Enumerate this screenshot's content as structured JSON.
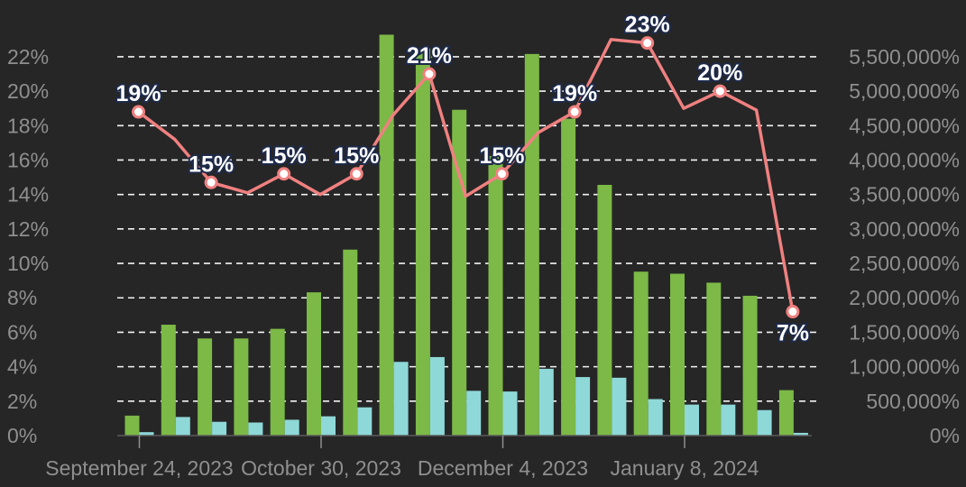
{
  "chart_data": {
    "type": "bar",
    "x_tick_labels": [
      "September 24, 2023",
      "October 30, 2023",
      "December 4, 2023",
      "January 8, 2024"
    ],
    "left_axis": {
      "ticks": [
        "0%",
        "2%",
        "4%",
        "6%",
        "8%",
        "10%",
        "12%",
        "14%",
        "16%",
        "18%",
        "20%",
        "22%"
      ],
      "range": [
        0,
        23.2
      ]
    },
    "right_axis": {
      "ticks": [
        "0%",
        "500,000%",
        "1,000,000%",
        "1,500,000%",
        "2,000,000%",
        "2,500,000%",
        "3,000,000%",
        "3,500,000%",
        "4,000,000%",
        "4,500,000%",
        "5,000,000%",
        "5,500,000%"
      ],
      "range": [
        0,
        5800000
      ]
    },
    "grid": true,
    "legend": "none",
    "series": [
      {
        "type": "bar",
        "axis": "right",
        "color": "#7cb947",
        "values": [
          290000,
          1610000,
          1410000,
          1410000,
          1550000,
          2080000,
          2700000,
          5820000,
          5620000,
          4730000,
          4060000,
          5540000,
          4600000,
          3640000,
          2380000,
          2350000,
          2220000,
          2030000,
          660000
        ]
      },
      {
        "type": "bar",
        "axis": "right",
        "color": "#8fd8d8",
        "values": [
          50000,
          270000,
          200000,
          190000,
          230000,
          280000,
          410000,
          1070000,
          1140000,
          650000,
          640000,
          970000,
          850000,
          840000,
          530000,
          450000,
          450000,
          370000,
          40000
        ]
      },
      {
        "type": "line",
        "axis": "left",
        "color": "#f08080",
        "values": [
          18.8,
          17.2,
          14.7,
          14.1,
          15.2,
          14.0,
          15.2,
          18.6,
          21.0,
          13.9,
          15.2,
          17.6,
          18.8,
          23.0,
          22.8,
          19.0,
          20.0,
          18.9,
          7.2
        ]
      }
    ],
    "data_labels": [
      {
        "index": 0,
        "value": 18.8,
        "text": "19%"
      },
      {
        "index": 2,
        "value": 14.7,
        "text": "15%"
      },
      {
        "index": 4,
        "value": 15.2,
        "text": "15%"
      },
      {
        "index": 6,
        "value": 15.2,
        "text": "15%"
      },
      {
        "index": 8,
        "value": 21.0,
        "text": "21%"
      },
      {
        "index": 10,
        "value": 15.2,
        "text": "15%"
      },
      {
        "index": 12,
        "value": 18.8,
        "text": "19%"
      },
      {
        "index": 14,
        "value": 22.8,
        "text": "23%"
      },
      {
        "index": 16,
        "value": 20.0,
        "text": "20%"
      },
      {
        "index": 18,
        "value": 7.2,
        "text": "7%"
      }
    ]
  }
}
